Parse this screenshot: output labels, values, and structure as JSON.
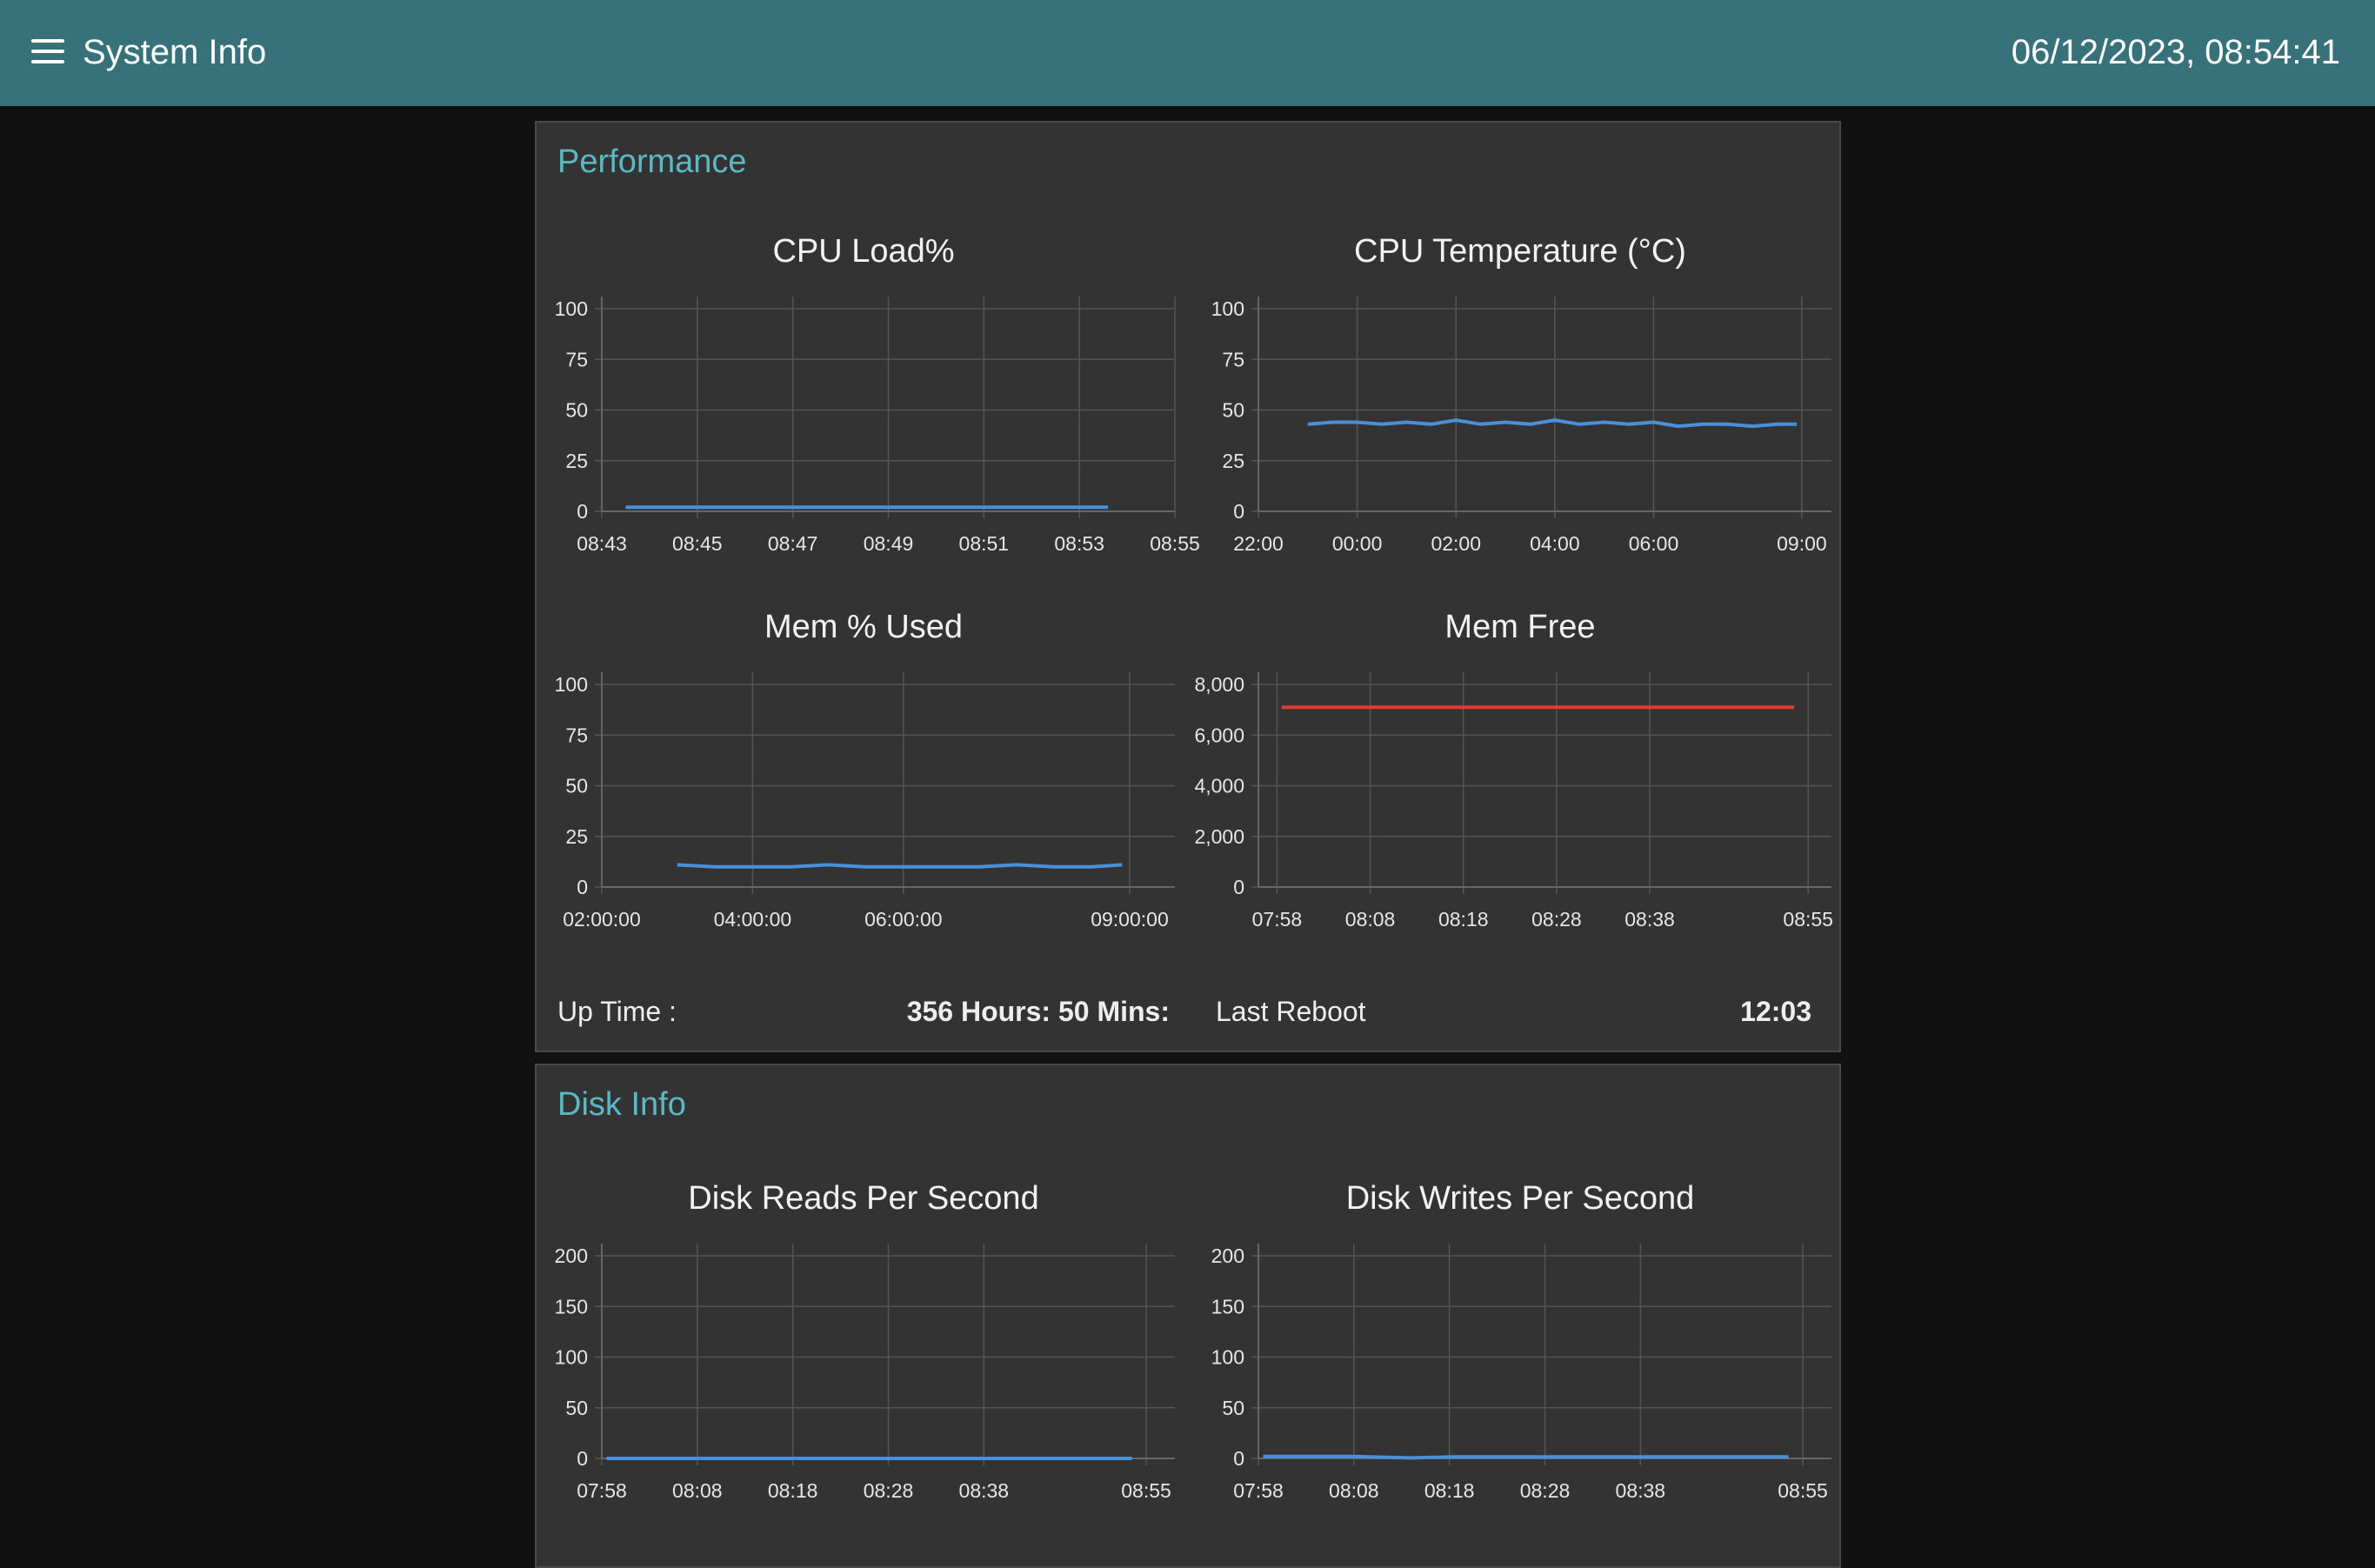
{
  "header": {
    "title": "System Info",
    "datetime": "06/12/2023, 08:54:41",
    "menu_icon": "hamburger-menu-icon"
  },
  "performance": {
    "title": "Performance",
    "uptime_label": "Up Time :",
    "uptime_value": "356 Hours: 50 Mins:",
    "reboot_label": "Last Reboot",
    "reboot_value": "12:03"
  },
  "disk": {
    "title": "Disk Info"
  },
  "colors": {
    "header": "#37727b",
    "accent": "#5bb9c6",
    "series_blue": "#4a8fd9",
    "series_red": "#e53935",
    "panel": "#333333"
  },
  "chart_data": [
    {
      "id": "cpu-load",
      "type": "line",
      "title": "CPU Load%",
      "x_ticks": [
        "08:43",
        "08:45",
        "08:47",
        "08:49",
        "08:51",
        "08:53",
        "08:55"
      ],
      "x_range": [
        0,
        12
      ],
      "y_ticks": [
        "0",
        "25",
        "50",
        "75",
        "100"
      ],
      "ylim": [
        0,
        100
      ],
      "grid": true,
      "series": [
        {
          "color": "#4a8fd9",
          "x": [
            0.5,
            10.6
          ],
          "y": [
            2,
            2
          ]
        }
      ]
    },
    {
      "id": "cpu-temp",
      "type": "line",
      "title": "CPU Temperature (°C)",
      "x_ticks": [
        "22:00",
        "00:00",
        "02:00",
        "04:00",
        "06:00",
        "09:00"
      ],
      "x_tick_pos": [
        0,
        2,
        4,
        6,
        8,
        11
      ],
      "x_range": [
        0,
        11.6
      ],
      "y_ticks": [
        "0",
        "25",
        "50",
        "75",
        "100"
      ],
      "ylim": [
        0,
        100
      ],
      "grid": true,
      "series": [
        {
          "color": "#4a8fd9",
          "x": [
            1.0,
            1.5,
            2.0,
            2.5,
            3.0,
            3.5,
            4.0,
            4.5,
            5.0,
            5.5,
            6.0,
            6.5,
            7.0,
            7.5,
            8.0,
            8.5,
            9.0,
            9.5,
            10.0,
            10.5,
            10.9
          ],
          "y": [
            43,
            44,
            44,
            43,
            44,
            43,
            45,
            43,
            44,
            43,
            45,
            43,
            44,
            43,
            44,
            42,
            43,
            43,
            42,
            43,
            43
          ]
        }
      ]
    },
    {
      "id": "mem-used",
      "type": "line",
      "title": "Mem % Used",
      "x_ticks": [
        "02:00:00",
        "04:00:00",
        "06:00:00",
        "09:00:00"
      ],
      "x_tick_pos": [
        0,
        2,
        4,
        7
      ],
      "x_range": [
        0,
        7.6
      ],
      "y_ticks": [
        "0",
        "25",
        "50",
        "75",
        "100"
      ],
      "ylim": [
        0,
        100
      ],
      "grid": true,
      "series": [
        {
          "color": "#4a8fd9",
          "x": [
            1.0,
            1.5,
            2.0,
            2.5,
            3.0,
            3.5,
            4.0,
            4.5,
            5.0,
            5.5,
            6.0,
            6.5,
            6.9
          ],
          "y": [
            11,
            10,
            10,
            10,
            11,
            10,
            10,
            10,
            10,
            11,
            10,
            10,
            11
          ]
        }
      ]
    },
    {
      "id": "mem-free",
      "type": "line",
      "title": "Mem Free",
      "x_ticks": [
        "07:58",
        "08:08",
        "08:18",
        "08:28",
        "08:38",
        "08:55"
      ],
      "x_tick_pos": [
        0,
        10,
        20,
        30,
        40,
        57
      ],
      "x_range": [
        -2,
        59.5
      ],
      "y_ticks": [
        "0",
        "2,000",
        "4,000",
        "6,000",
        "8,000"
      ],
      "ylim": [
        0,
        8000
      ],
      "grid": true,
      "series": [
        {
          "color": "#e53935",
          "x": [
            0.5,
            55.5
          ],
          "y": [
            7100,
            7100
          ]
        }
      ]
    },
    {
      "id": "disk-reads",
      "type": "line",
      "title": "Disk Reads Per Second",
      "x_ticks": [
        "07:58",
        "08:08",
        "08:18",
        "08:28",
        "08:38",
        "08:55"
      ],
      "x_tick_pos": [
        0,
        10,
        20,
        30,
        40,
        57
      ],
      "x_range": [
        0,
        60
      ],
      "y_ticks": [
        "0",
        "50",
        "100",
        "150",
        "200"
      ],
      "ylim": [
        0,
        200
      ],
      "grid": true,
      "series": [
        {
          "color": "#4a8fd9",
          "x": [
            0.5,
            55.5
          ],
          "y": [
            0,
            0
          ]
        }
      ]
    },
    {
      "id": "disk-writes",
      "type": "line",
      "title": "Disk Writes Per Second",
      "x_ticks": [
        "07:58",
        "08:08",
        "08:18",
        "08:28",
        "08:38",
        "08:55"
      ],
      "x_tick_pos": [
        0,
        10,
        20,
        30,
        40,
        57
      ],
      "x_range": [
        0,
        60
      ],
      "y_ticks": [
        "0",
        "50",
        "100",
        "150",
        "200"
      ],
      "ylim": [
        0,
        200
      ],
      "grid": true,
      "series": [
        {
          "color": "#4a8fd9",
          "x": [
            0.5,
            10,
            16,
            20,
            30,
            40,
            50,
            55.5
          ],
          "y": [
            2,
            2,
            0.5,
            1.5,
            1.5,
            1.5,
            1.5,
            1.5
          ]
        }
      ]
    }
  ]
}
